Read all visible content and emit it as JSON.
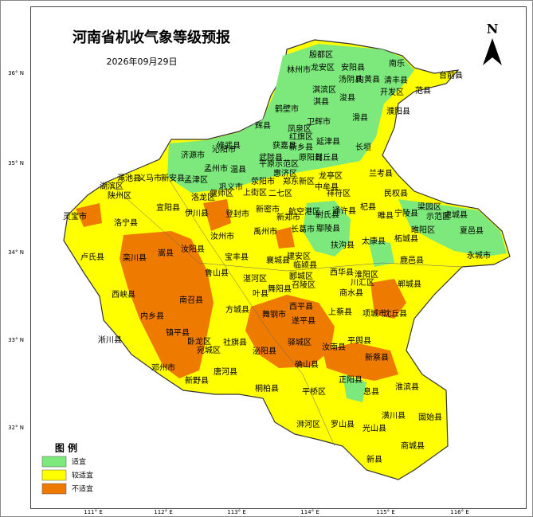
{
  "title": "河南省机收气象等级预报",
  "date": "2026年09月29日",
  "north": "N",
  "legend": {
    "title": "图 例",
    "items": [
      {
        "label": "适宜",
        "color": "#7de87b"
      },
      {
        "label": "较适宜",
        "color": "#ffff00"
      },
      {
        "label": "不适宜",
        "color": "#ee7a00"
      }
    ]
  },
  "lat_labels": [
    "36° N",
    "35° N",
    "34° N",
    "33° N",
    "32° N"
  ],
  "lon_labels": [
    "111° E",
    "112° E",
    "113° E",
    "114° E",
    "115° E",
    "116° E"
  ],
  "places": [
    "殷都区",
    "安阳县",
    "南乐",
    "林州市",
    "龙安区",
    "汤阴县",
    "内黄县",
    "清丰县",
    "范县",
    "台前县",
    "淇滨区",
    "开发区",
    "鹤壁市",
    "淇县",
    "浚县",
    "濮阳县",
    "滑县",
    "卫辉市",
    "辉县",
    "凤泉区",
    "红旗区",
    "新乡县",
    "延津县",
    "长垣",
    "修武县",
    "获嘉县",
    "济源市",
    "沁阳市",
    "武陟县",
    "原阳县",
    "封丘县",
    "温县",
    "孟州市",
    "平原示范区",
    "兰考县",
    "渑池县",
    "义马市",
    "新安县",
    "孟津区",
    "巩义市",
    "荥阳市",
    "惠济区",
    "郑东新区",
    "中牟县",
    "龙亭区",
    "湖滨区",
    "陕州区",
    "洛龙区",
    "偃师区",
    "上街区",
    "二七区",
    "祥符区",
    "民权县",
    "宜阳县",
    "新密市",
    "航空港区",
    "尉氏县",
    "通许县",
    "杞县",
    "睢县",
    "宁陵县",
    "梁园区",
    "示范区",
    "虞城县",
    "灵宝市",
    "洛宁县",
    "伊川县",
    "登封市",
    "新郑市",
    "鄢陵县",
    "柘城县",
    "睢阳区",
    "夏邑县",
    "汝州市",
    "禹州市",
    "长葛市",
    "扶沟县",
    "太康县",
    "卢氏县",
    "栾川县",
    "嵩县",
    "汝阳县",
    "宝丰县",
    "襄城县",
    "建安区",
    "西华县",
    "鹿邑县",
    "永城市",
    "鲁山县",
    "湛河区",
    "临颍县",
    "淮阳区",
    "郸城县",
    "舞阳县",
    "川汇区",
    "商水县",
    "西峡县",
    "叶县",
    "召陵区",
    "郾城区",
    "南召县",
    "方城县",
    "西平县",
    "上蔡县",
    "项城市",
    "沈丘县",
    "内乡县",
    "舞钢市",
    "遂平县",
    "镇平县",
    "淅川县",
    "卧龙区",
    "宛城区",
    "社旗县",
    "泌阳县",
    "驿城区",
    "平舆县",
    "汝南县",
    "新蔡县",
    "邓州市",
    "唐河县",
    "确山县",
    "新野县",
    "正阳县",
    "桐柏县",
    "平桥区",
    "淮滨县",
    "息县",
    "潢川县",
    "固始县",
    "浉河区",
    "罗山县",
    "光山县",
    "商城县",
    "新县"
  ]
}
